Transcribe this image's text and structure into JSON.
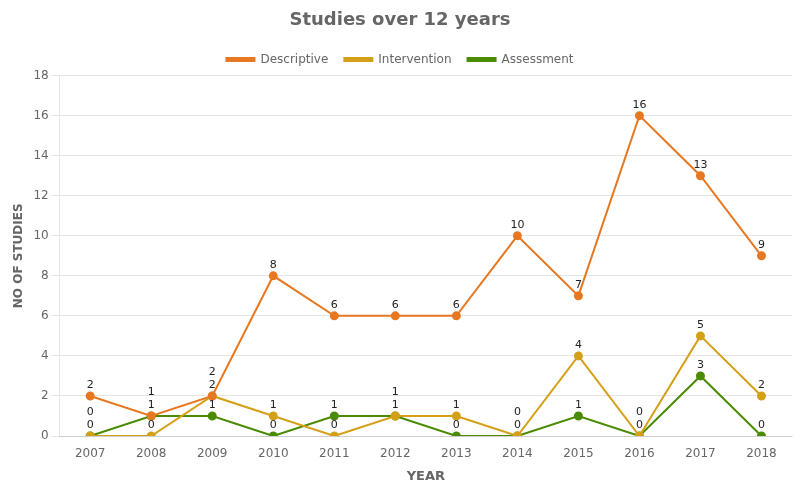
{
  "chart_data": {
    "type": "line",
    "title": "Studies over 12 years",
    "xlabel": "YEAR",
    "ylabel": "NO OF STUDIES",
    "x": [
      2007,
      2008,
      2009,
      2010,
      2011,
      2012,
      2013,
      2014,
      2015,
      2016,
      2017,
      2018
    ],
    "series": [
      {
        "name": "Descriptive",
        "color": "#E87722",
        "values": [
          2,
          1,
          2,
          8,
          6,
          6,
          6,
          10,
          7,
          16,
          13,
          9
        ]
      },
      {
        "name": "Intervention",
        "color": "#D4A017",
        "values": [
          0,
          0,
          2,
          1,
          0,
          1,
          1,
          0,
          4,
          0,
          5,
          2
        ]
      },
      {
        "name": "Assessment",
        "color": "#4B8B00",
        "values": [
          0,
          1,
          1,
          0,
          1,
          1,
          0,
          0,
          1,
          0,
          3,
          0
        ]
      }
    ],
    "xlim": [
      2006.5,
      2018.5
    ],
    "xticks": [
      2007,
      2008,
      2009,
      2010,
      2011,
      2012,
      2013,
      2014,
      2015,
      2016,
      2017,
      2018
    ],
    "ylim": [
      0,
      18
    ],
    "yticks": [
      0,
      2,
      4,
      6,
      8,
      10,
      12,
      14,
      16,
      18
    ],
    "grid": true,
    "legend": "top",
    "data_labels": true,
    "marker": "circle"
  }
}
